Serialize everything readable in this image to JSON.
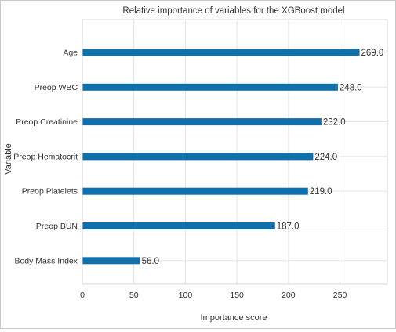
{
  "chart_data": {
    "type": "bar",
    "orientation": "horizontal",
    "title": "Relative importance of variables for the XGBoost model",
    "xlabel": "Importance score",
    "ylabel": "Variable",
    "categories": [
      "Age",
      "Preop WBC",
      "Preop Creatinine",
      "Preop Hematocrit",
      "Preop Platelets",
      "Preop BUN",
      "Body Mass Index"
    ],
    "values": [
      269,
      248,
      232,
      224,
      219,
      187,
      56
    ],
    "value_labels": [
      "269.0",
      "248.0",
      "232.0",
      "224.0",
      "219.0",
      "187.0",
      "56.0"
    ],
    "xlim": [
      0,
      296
    ],
    "xticks": [
      0,
      50,
      100,
      150,
      200,
      250
    ],
    "xtick_labels": [
      "0",
      "50",
      "100",
      "150",
      "200",
      "250"
    ],
    "grid": true,
    "bar_color": "#1170aa",
    "grid_color": "#e5e5e5"
  }
}
